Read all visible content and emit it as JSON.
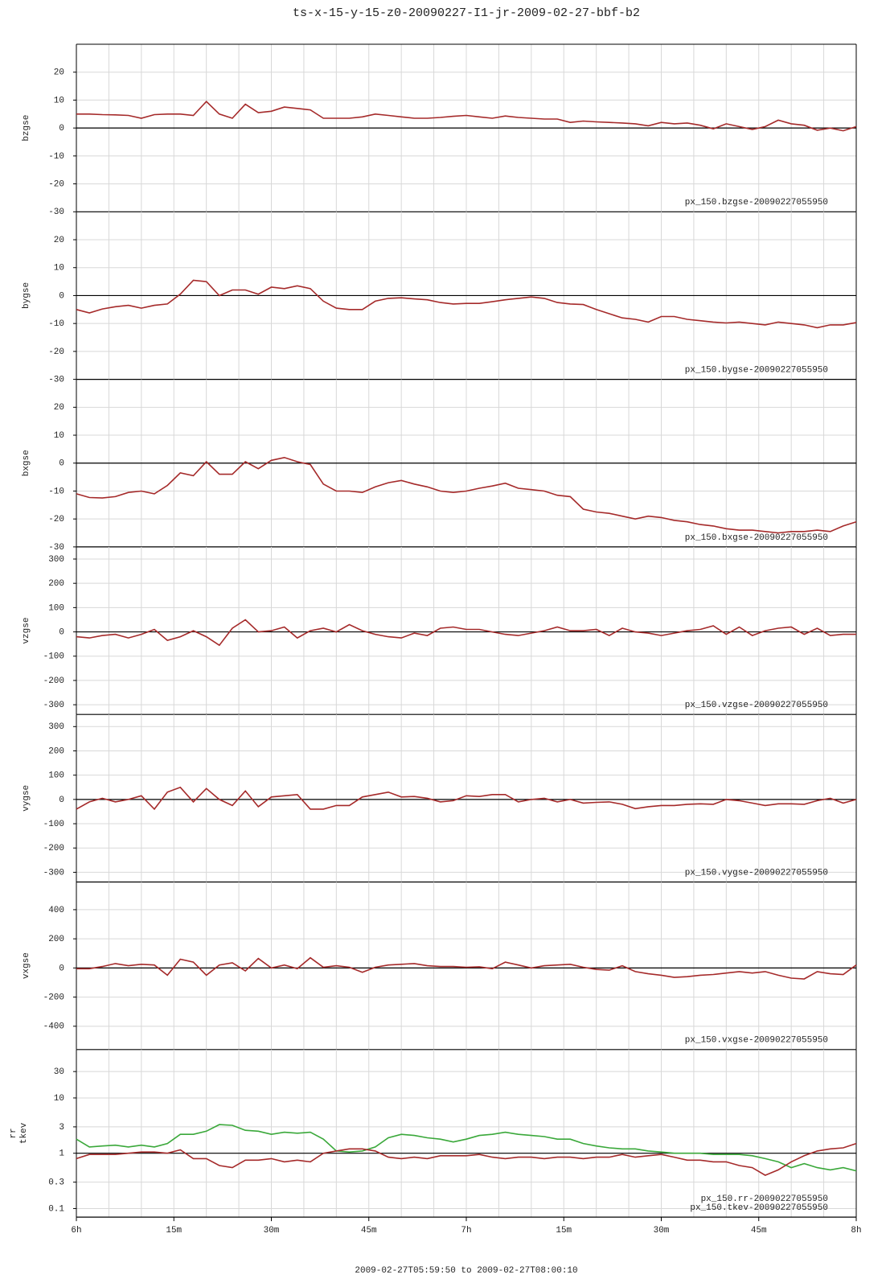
{
  "chart_data": [
    {
      "type": "line",
      "title": "ts-x-15-y-15-z0-20090227-I1-jr-2009-02-27-bbf-b2",
      "ylabel": "bzgse",
      "xlim": [
        0,
        120
      ],
      "xgrid": [
        0,
        5,
        10,
        15,
        20,
        25,
        30,
        35,
        40,
        45,
        50,
        55,
        60,
        65,
        70,
        75,
        80,
        85,
        90,
        95,
        100,
        105,
        110,
        115,
        120
      ],
      "ylim": [
        -30,
        30
      ],
      "yticks": [
        -30,
        -20,
        -10,
        0,
        10,
        20
      ],
      "hline": 0,
      "grid": true,
      "x": [
        0,
        2,
        4,
        6,
        8,
        10,
        12,
        14,
        16,
        18,
        20,
        22,
        24,
        26,
        28,
        30,
        32,
        34,
        36,
        38,
        40,
        42,
        44,
        46,
        48,
        50,
        52,
        54,
        56,
        58,
        60,
        62,
        64,
        66,
        68,
        70,
        72,
        74,
        76,
        78,
        80,
        82,
        84,
        86,
        88,
        90,
        92,
        94,
        96,
        98,
        100,
        102,
        104,
        106,
        108,
        110,
        112,
        114,
        116,
        118,
        120
      ],
      "series": [
        {
          "name": "px_150.bzgse-20090227055950",
          "color": "#a52a2a",
          "values": [
            5,
            5,
            4.8,
            4.7,
            4.5,
            3.5,
            4.8,
            5,
            5,
            4.5,
            9.5,
            5,
            3.5,
            8.5,
            5.5,
            6,
            7.5,
            7,
            6.5,
            3.5,
            3.5,
            3.5,
            4,
            5,
            4.5,
            4,
            3.5,
            3.5,
            3.8,
            4.2,
            4.5,
            4,
            3.5,
            4.3,
            3.8,
            3.5,
            3.2,
            3.2,
            2,
            2.5,
            2.2,
            2,
            1.8,
            1.5,
            0.8,
            2,
            1.5,
            1.8,
            1,
            -0.3,
            1.5,
            0.5,
            -0.5,
            0.5,
            2.8,
            1.5,
            1,
            -0.8,
            0,
            -1,
            0.5
          ]
        }
      ]
    },
    {
      "type": "line",
      "ylabel": "bygse",
      "xlim": [
        0,
        120
      ],
      "ylim": [
        -30,
        30
      ],
      "yticks": [
        -30,
        -20,
        -10,
        0,
        10,
        20
      ],
      "hline": 0,
      "grid": true,
      "x": [
        0,
        2,
        4,
        6,
        8,
        10,
        12,
        14,
        16,
        18,
        20,
        22,
        24,
        26,
        28,
        30,
        32,
        34,
        36,
        38,
        40,
        42,
        44,
        46,
        48,
        50,
        52,
        54,
        56,
        58,
        60,
        62,
        64,
        66,
        68,
        70,
        72,
        74,
        76,
        78,
        80,
        82,
        84,
        86,
        88,
        90,
        92,
        94,
        96,
        98,
        100,
        102,
        104,
        106,
        108,
        110,
        112,
        114,
        116,
        118,
        120
      ],
      "series": [
        {
          "name": "px_150.bygse-20090227055950",
          "color": "#a52a2a",
          "values": [
            -5,
            -6.2,
            -4.8,
            -4,
            -3.5,
            -4.5,
            -3.5,
            -3,
            0.5,
            5.5,
            5,
            0,
            2,
            2,
            0.5,
            3,
            2.5,
            3.5,
            2.5,
            -2,
            -4.5,
            -5,
            -5,
            -2,
            -1,
            -0.8,
            -1.2,
            -1.5,
            -2.5,
            -3,
            -2.8,
            -2.8,
            -2.2,
            -1.5,
            -1,
            -0.5,
            -1,
            -2.5,
            -3,
            -3.2,
            -5,
            -6.5,
            -8,
            -8.5,
            -9.5,
            -7.5,
            -7.5,
            -8.5,
            -9,
            -9.5,
            -9.8,
            -9.5,
            -10,
            -10.5,
            -9.5,
            -10,
            -10.5,
            -11.5,
            -10.5,
            -10.5,
            -9.7
          ]
        }
      ]
    },
    {
      "type": "line",
      "ylabel": "bxgse",
      "xlim": [
        0,
        120
      ],
      "ylim": [
        -30,
        30
      ],
      "yticks": [
        -30,
        -20,
        -10,
        0,
        10,
        20
      ],
      "hline": 0,
      "grid": true,
      "x": [
        0,
        2,
        4,
        6,
        8,
        10,
        12,
        14,
        16,
        18,
        20,
        22,
        24,
        26,
        28,
        30,
        32,
        34,
        36,
        38,
        40,
        42,
        44,
        46,
        48,
        50,
        52,
        54,
        56,
        58,
        60,
        62,
        64,
        66,
        68,
        70,
        72,
        74,
        76,
        78,
        80,
        82,
        84,
        86,
        88,
        90,
        92,
        94,
        96,
        98,
        100,
        102,
        104,
        106,
        108,
        110,
        112,
        114,
        116,
        118,
        120
      ],
      "series": [
        {
          "name": "px_150.bxgse-20090227055950",
          "color": "#a52a2a",
          "values": [
            -11,
            -12.3,
            -12.5,
            -12,
            -10.5,
            -10,
            -11,
            -8,
            -3.5,
            -4.5,
            0.5,
            -4,
            -4,
            0.5,
            -2,
            1,
            2,
            0.5,
            -0.5,
            -7.5,
            -10,
            -10,
            -10.5,
            -8.5,
            -7,
            -6.2,
            -7.5,
            -8.5,
            -10,
            -10.5,
            -10,
            -9,
            -8.2,
            -7.2,
            -9,
            -9.5,
            -10,
            -11.5,
            -12,
            -16.5,
            -17.5,
            -18,
            -19,
            -20,
            -19,
            -19.5,
            -20.5,
            -21,
            -22,
            -22.5,
            -23.5,
            -24,
            -24,
            -24.5,
            -25,
            -24.5,
            -24.5,
            -24,
            -24.5,
            -22.5,
            -21
          ]
        }
      ]
    },
    {
      "type": "line",
      "ylabel": "vzgse",
      "xlim": [
        0,
        120
      ],
      "ylim": [
        -340,
        350
      ],
      "yticks": [
        -300,
        -200,
        -100,
        0,
        100,
        200,
        300
      ],
      "hline": 0,
      "grid": true,
      "x": [
        0,
        2,
        4,
        6,
        8,
        10,
        12,
        14,
        16,
        18,
        20,
        22,
        24,
        26,
        28,
        30,
        32,
        34,
        36,
        38,
        40,
        42,
        44,
        46,
        48,
        50,
        52,
        54,
        56,
        58,
        60,
        62,
        64,
        66,
        68,
        70,
        72,
        74,
        76,
        78,
        80,
        82,
        84,
        86,
        88,
        90,
        92,
        94,
        96,
        98,
        100,
        102,
        104,
        106,
        108,
        110,
        112,
        114,
        116,
        118,
        120
      ],
      "series": [
        {
          "name": "px_150.vzgse-20090227055950",
          "color": "#a52a2a",
          "values": [
            -20,
            -25,
            -15,
            -10,
            -25,
            -10,
            10,
            -35,
            -20,
            5,
            -20,
            -55,
            15,
            50,
            0,
            5,
            20,
            -25,
            5,
            15,
            0,
            30,
            5,
            -10,
            -20,
            -25,
            -5,
            -15,
            15,
            20,
            10,
            10,
            0,
            -10,
            -15,
            -5,
            5,
            20,
            5,
            5,
            10,
            -15,
            15,
            0,
            -5,
            -15,
            -5,
            5,
            10,
            25,
            -10,
            20,
            -15,
            5,
            15,
            20,
            -10,
            15,
            -15,
            -10,
            -10
          ]
        }
      ]
    },
    {
      "type": "line",
      "ylabel": "vygse",
      "xlim": [
        0,
        120
      ],
      "ylim": [
        -340,
        350
      ],
      "yticks": [
        -300,
        -200,
        -100,
        0,
        100,
        200,
        300
      ],
      "hline": 0,
      "grid": true,
      "x": [
        0,
        2,
        4,
        6,
        8,
        10,
        12,
        14,
        16,
        18,
        20,
        22,
        24,
        26,
        28,
        30,
        32,
        34,
        36,
        38,
        40,
        42,
        44,
        46,
        48,
        50,
        52,
        54,
        56,
        58,
        60,
        62,
        64,
        66,
        68,
        70,
        72,
        74,
        76,
        78,
        80,
        82,
        84,
        86,
        88,
        90,
        92,
        94,
        96,
        98,
        100,
        102,
        104,
        106,
        108,
        110,
        112,
        114,
        116,
        118,
        120
      ],
      "series": [
        {
          "name": "px_150.vygse-20090227055950",
          "color": "#a52a2a",
          "values": [
            -40,
            -10,
            5,
            -10,
            0,
            15,
            -40,
            30,
            50,
            -10,
            45,
            0,
            -25,
            35,
            -30,
            10,
            15,
            20,
            -40,
            -40,
            -25,
            -25,
            10,
            20,
            30,
            10,
            12,
            5,
            -10,
            -5,
            15,
            12,
            20,
            20,
            -10,
            0,
            5,
            -10,
            0,
            -15,
            -12,
            -10,
            -20,
            -38,
            -30,
            -25,
            -25,
            -20,
            -18,
            -20,
            0,
            -5,
            -15,
            -25,
            -18,
            -18,
            -20,
            -5,
            5,
            -15,
            0
          ]
        }
      ]
    },
    {
      "type": "line",
      "ylabel": "vxgse",
      "xlim": [
        0,
        120
      ],
      "ylim": [
        -560,
        590
      ],
      "yticks": [
        -400,
        -200,
        0,
        200,
        400
      ],
      "hline": 0,
      "grid": true,
      "x": [
        0,
        2,
        4,
        6,
        8,
        10,
        12,
        14,
        16,
        18,
        20,
        22,
        24,
        26,
        28,
        30,
        32,
        34,
        36,
        38,
        40,
        42,
        44,
        46,
        48,
        50,
        52,
        54,
        56,
        58,
        60,
        62,
        64,
        66,
        68,
        70,
        72,
        74,
        76,
        78,
        80,
        82,
        84,
        86,
        88,
        90,
        92,
        94,
        96,
        98,
        100,
        102,
        104,
        106,
        108,
        110,
        112,
        114,
        116,
        118,
        120
      ],
      "series": [
        {
          "name": "px_150.vxgse-20090227055950",
          "color": "#a52a2a",
          "values": [
            -5,
            -5,
            10,
            30,
            15,
            25,
            20,
            -50,
            60,
            40,
            -50,
            20,
            35,
            -20,
            65,
            0,
            20,
            -5,
            70,
            5,
            15,
            5,
            -30,
            5,
            20,
            25,
            30,
            15,
            10,
            10,
            5,
            8,
            -5,
            40,
            20,
            0,
            15,
            20,
            25,
            5,
            -10,
            -15,
            15,
            -25,
            -40,
            -50,
            -65,
            -60,
            -50,
            -45,
            -35,
            -25,
            -35,
            -25,
            -50,
            -70,
            -75,
            -25,
            -40,
            -45,
            20
          ]
        }
      ]
    },
    {
      "type": "line",
      "ylabel": [
        "rr",
        "tkev"
      ],
      "xlim": [
        0,
        120
      ],
      "log": true,
      "ylim": [
        0.07,
        75
      ],
      "yticks": [
        0.1,
        0.3,
        1,
        3,
        10,
        30
      ],
      "hline": 1,
      "grid": true,
      "xticks": [
        {
          "value": 0,
          "label": "6h"
        },
        {
          "value": 15,
          "label": "15m"
        },
        {
          "value": 30,
          "label": "30m"
        },
        {
          "value": 45,
          "label": "45m"
        },
        {
          "value": 60,
          "label": "7h"
        },
        {
          "value": 75,
          "label": "15m"
        },
        {
          "value": 90,
          "label": "30m"
        },
        {
          "value": 105,
          "label": "45m"
        },
        {
          "value": 120,
          "label": "8h"
        }
      ],
      "xlabel": "2009-02-27T05:59:50 to 2009-02-27T08:00:10",
      "x": [
        0,
        2,
        4,
        6,
        8,
        10,
        12,
        14,
        16,
        18,
        20,
        22,
        24,
        26,
        28,
        30,
        32,
        34,
        36,
        38,
        40,
        42,
        44,
        46,
        48,
        50,
        52,
        54,
        56,
        58,
        60,
        62,
        64,
        66,
        68,
        70,
        72,
        74,
        76,
        78,
        80,
        82,
        84,
        86,
        88,
        90,
        92,
        94,
        96,
        98,
        100,
        102,
        104,
        106,
        108,
        110,
        112,
        114,
        116,
        118,
        120
      ],
      "series": [
        {
          "name": "px_150.rr-20090227055950",
          "color": "#3aa83a",
          "values": [
            1.8,
            1.3,
            1.35,
            1.4,
            1.3,
            1.4,
            1.3,
            1.5,
            2.2,
            2.2,
            2.5,
            3.3,
            3.2,
            2.6,
            2.5,
            2.2,
            2.4,
            2.3,
            2.4,
            1.8,
            1.1,
            1.05,
            1.1,
            1.3,
            1.9,
            2.2,
            2.1,
            1.9,
            1.8,
            1.6,
            1.8,
            2.1,
            2.2,
            2.4,
            2.2,
            2.1,
            2.0,
            1.8,
            1.8,
            1.5,
            1.35,
            1.25,
            1.2,
            1.2,
            1.1,
            1.05,
            1.0,
            1.0,
            1.0,
            0.95,
            0.95,
            0.95,
            0.9,
            0.8,
            0.7,
            0.55,
            0.65,
            0.55,
            0.5,
            0.55,
            0.48
          ]
        },
        {
          "name": "px_150.tkev-20090227055950",
          "color": "#a52a2a",
          "values": [
            0.8,
            0.95,
            0.95,
            0.95,
            1.0,
            1.05,
            1.05,
            1.0,
            1.15,
            0.8,
            0.8,
            0.6,
            0.55,
            0.75,
            0.75,
            0.8,
            0.7,
            0.75,
            0.7,
            1.0,
            1.1,
            1.2,
            1.2,
            1.1,
            0.85,
            0.8,
            0.85,
            0.8,
            0.9,
            0.9,
            0.9,
            0.95,
            0.85,
            0.8,
            0.85,
            0.85,
            0.8,
            0.85,
            0.85,
            0.8,
            0.85,
            0.85,
            0.95,
            0.85,
            0.9,
            0.95,
            0.85,
            0.75,
            0.75,
            0.7,
            0.7,
            0.6,
            0.55,
            0.4,
            0.5,
            0.7,
            0.9,
            1.1,
            1.2,
            1.25,
            1.5
          ]
        }
      ]
    }
  ]
}
